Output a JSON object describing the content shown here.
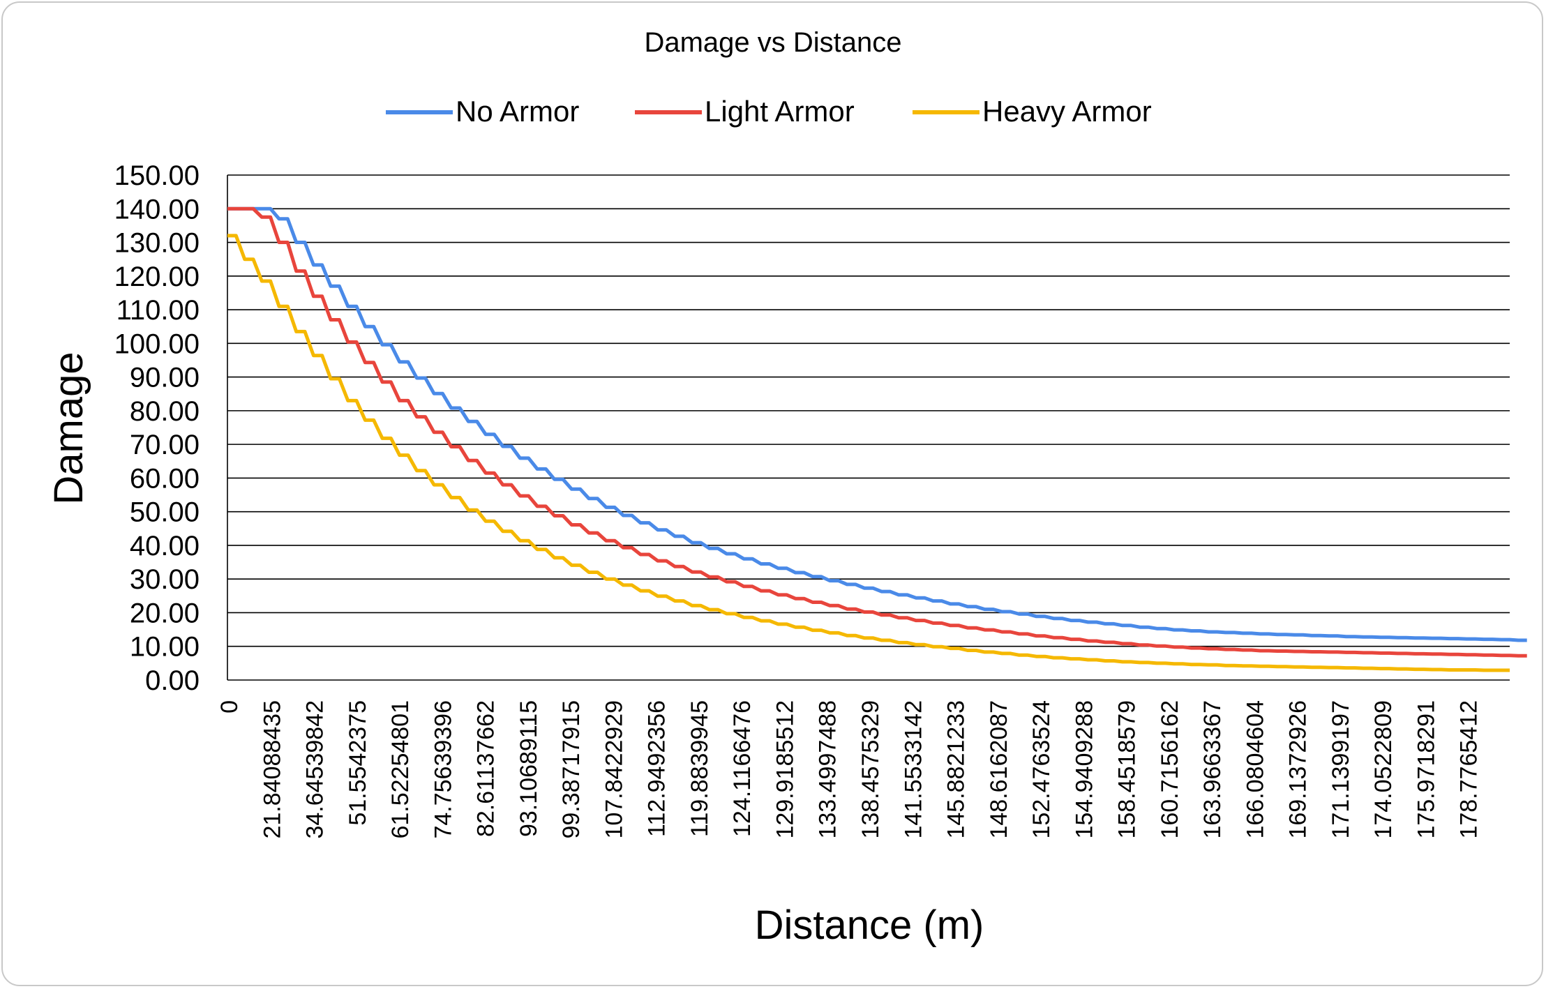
{
  "chart_data": {
    "type": "line",
    "title": "Damage vs Distance",
    "xlabel": "Distance (m)",
    "ylabel": "Damage",
    "ylim": [
      0,
      150
    ],
    "yticks": [
      "0.00",
      "10.00",
      "20.00",
      "30.00",
      "40.00",
      "50.00",
      "60.00",
      "70.00",
      "80.00",
      "90.00",
      "100.00",
      "110.00",
      "120.00",
      "130.00",
      "140.00",
      "150.00"
    ],
    "xtick_labels": [
      "0",
      "21.84088435",
      "34.64539842",
      "51.5542375",
      "61.52254801",
      "74.75639396",
      "82.61137662",
      "93.10689115",
      "99.38717915",
      "107.8422929",
      "112.9492356",
      "119.8839945",
      "124.1166476",
      "129.9185512",
      "133.4997488",
      "138.4575329",
      "141.5533142",
      "145.8821233",
      "148.6162087",
      "152.4763524",
      "154.9409288",
      "158.4518579",
      "160.7156162",
      "163.9663367",
      "166.0804604",
      "169.1372926",
      "171.1399197",
      "174.0522809",
      "175.9718291",
      "178.7765412"
    ],
    "num_points": 150,
    "grid": "horizontal",
    "legend": "top-center",
    "series": [
      {
        "name": "No Armor",
        "color": "#4a8ae8",
        "values": [
          140,
          140,
          140,
          140,
          140,
          140,
          137,
          137,
          130,
          130,
          123.3,
          123.3,
          117,
          117,
          111,
          111,
          105,
          105,
          99.6,
          99.6,
          94.5,
          94.5,
          89.7,
          89.7,
          85.1,
          85.1,
          80.8,
          80.8,
          76.8,
          76.8,
          73,
          73,
          69.4,
          69.4,
          65.9,
          65.9,
          62.7,
          62.7,
          59.6,
          59.6,
          56.7,
          56.7,
          53.9,
          53.9,
          51.3,
          51.3,
          48.9,
          48.9,
          46.7,
          46.7,
          44.6,
          44.6,
          42.7,
          42.7,
          40.8,
          40.8,
          39.1,
          39.1,
          37.5,
          37.5,
          36,
          36,
          34.5,
          34.5,
          33.2,
          33.2,
          31.9,
          31.9,
          30.7,
          30.7,
          29.5,
          29.5,
          28.4,
          28.4,
          27.3,
          27.3,
          26.3,
          26.3,
          25.3,
          25.3,
          24.4,
          24.4,
          23.5,
          23.5,
          22.6,
          22.6,
          21.8,
          21.8,
          21,
          21,
          20.3,
          20.3,
          19.6,
          19.6,
          18.9,
          18.9,
          18.3,
          18.3,
          17.7,
          17.7,
          17.2,
          17.2,
          16.7,
          16.7,
          16.2,
          16.2,
          15.7,
          15.7,
          15.3,
          15.3,
          14.9,
          14.9,
          14.6,
          14.6,
          14.3,
          14.3,
          14.1,
          14.1,
          13.9,
          13.9,
          13.7,
          13.7,
          13.5,
          13.5,
          13.4,
          13.4,
          13.2,
          13.2,
          13.1,
          13.1,
          12.9,
          12.9,
          12.8,
          12.8,
          12.7,
          12.7,
          12.6,
          12.6,
          12.5,
          12.5,
          12.4,
          12.4,
          12.3,
          12.3,
          12.2,
          12.2,
          12.1,
          12.1,
          12,
          12,
          11.8,
          11.8
        ]
      },
      {
        "name": "Light Armor",
        "color": "#e8453c",
        "values": [
          140,
          140,
          140,
          140,
          137.5,
          137.5,
          130,
          130,
          121.5,
          121.5,
          114,
          114,
          107,
          107,
          100.4,
          100.4,
          94.3,
          94.3,
          88.5,
          88.5,
          83,
          83,
          78.2,
          78.2,
          73.6,
          73.6,
          69.3,
          69.3,
          65.2,
          65.2,
          61.5,
          61.5,
          58,
          58,
          54.7,
          54.7,
          51.6,
          51.6,
          48.8,
          48.8,
          46.1,
          46.1,
          43.7,
          43.7,
          41.4,
          41.4,
          39.3,
          39.3,
          37.3,
          37.3,
          35.4,
          35.4,
          33.7,
          33.7,
          32.1,
          32.1,
          30.6,
          30.6,
          29.2,
          29.2,
          27.8,
          27.8,
          26.5,
          26.5,
          25.3,
          25.3,
          24.2,
          24.2,
          23.1,
          23.1,
          22.1,
          22.1,
          21.1,
          21.1,
          20.2,
          20.2,
          19.3,
          19.3,
          18.5,
          18.5,
          17.7,
          17.7,
          16.9,
          16.9,
          16.2,
          16.2,
          15.5,
          15.5,
          14.9,
          14.9,
          14.3,
          14.3,
          13.7,
          13.7,
          13.1,
          13.1,
          12.6,
          12.6,
          12.1,
          12.1,
          11.6,
          11.6,
          11.2,
          11.2,
          10.8,
          10.8,
          10.4,
          10.4,
          10.1,
          10.1,
          9.8,
          9.8,
          9.5,
          9.5,
          9.3,
          9.3,
          9.1,
          9.1,
          8.9,
          8.9,
          8.7,
          8.7,
          8.6,
          8.6,
          8.5,
          8.5,
          8.4,
          8.4,
          8.3,
          8.3,
          8.2,
          8.2,
          8.1,
          8.1,
          8,
          8,
          7.9,
          7.9,
          7.8,
          7.8,
          7.7,
          7.7,
          7.6,
          7.6,
          7.5,
          7.5,
          7.4,
          7.4,
          7.3,
          7.3,
          7.2,
          7.2
        ]
      },
      {
        "name": "Heavy Armor",
        "color": "#f5b800",
        "values": [
          132,
          132,
          125,
          125,
          118.5,
          118.5,
          111,
          111,
          103.5,
          103.5,
          96.4,
          96.4,
          89.5,
          89.5,
          83,
          83,
          77.2,
          77.2,
          71.8,
          71.8,
          66.8,
          66.8,
          62.2,
          62.2,
          58,
          58,
          54.2,
          54.2,
          50.5,
          50.5,
          47.2,
          47.2,
          44.2,
          44.2,
          41.4,
          41.4,
          38.8,
          38.8,
          36.3,
          36.3,
          34.1,
          34.1,
          32,
          32,
          30,
          30,
          28.2,
          28.2,
          26.5,
          26.5,
          24.9,
          24.9,
          23.5,
          23.5,
          22.1,
          22.1,
          20.9,
          20.9,
          19.7,
          19.7,
          18.6,
          18.6,
          17.6,
          17.6,
          16.6,
          16.6,
          15.7,
          15.7,
          14.8,
          14.8,
          14,
          14,
          13.2,
          13.2,
          12.5,
          12.5,
          11.8,
          11.8,
          11.1,
          11.1,
          10.5,
          10.5,
          9.9,
          9.9,
          9.4,
          9.4,
          8.8,
          8.8,
          8.3,
          8.3,
          7.9,
          7.9,
          7.4,
          7.4,
          7,
          7,
          6.6,
          6.6,
          6.3,
          6.3,
          6,
          6,
          5.7,
          5.7,
          5.4,
          5.4,
          5.2,
          5.2,
          5,
          5,
          4.8,
          4.8,
          4.6,
          4.6,
          4.5,
          4.5,
          4.3,
          4.3,
          4.2,
          4.2,
          4.1,
          4.1,
          4,
          4,
          3.9,
          3.9,
          3.8,
          3.8,
          3.7,
          3.7,
          3.6,
          3.6,
          3.5,
          3.5,
          3.4,
          3.4,
          3.3,
          3.3,
          3.2,
          3.2,
          3.1,
          3.1,
          3,
          3,
          3,
          3,
          2.9,
          2.9,
          2.9,
          2.9
        ]
      }
    ]
  }
}
